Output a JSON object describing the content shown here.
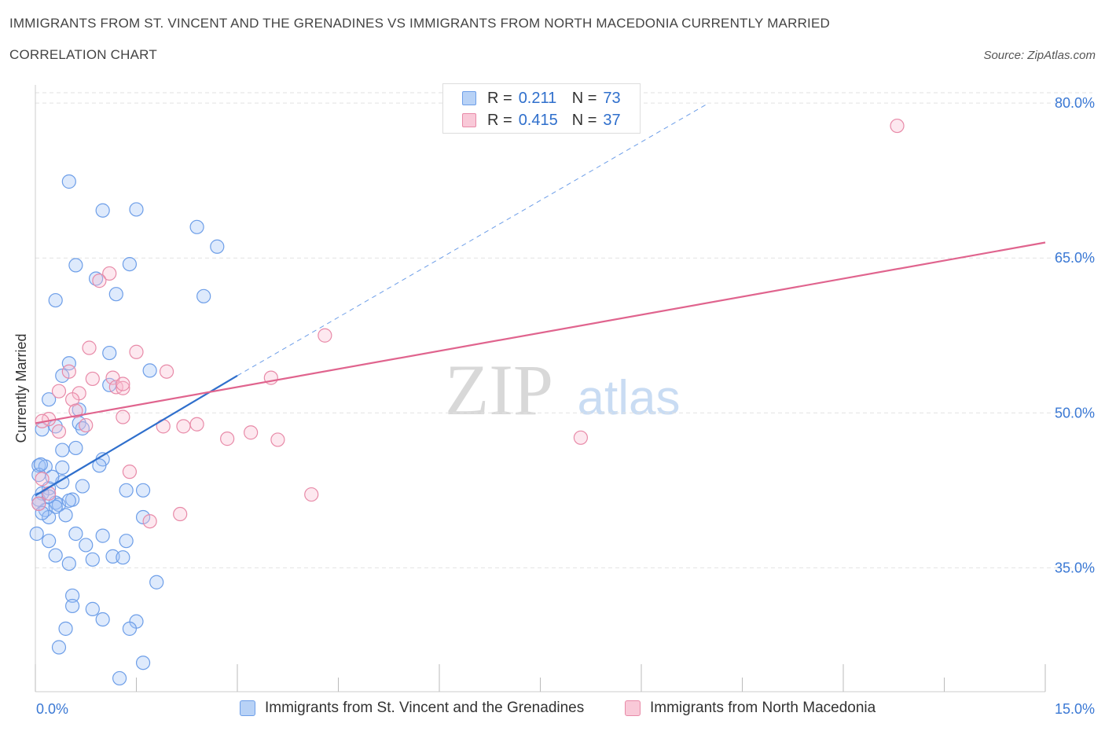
{
  "header": {
    "title_line1": "IMMIGRANTS FROM ST. VINCENT AND THE GRENADINES VS IMMIGRANTS FROM NORTH MACEDONIA CURRENTLY MARRIED",
    "title_line2": "CORRELATION CHART",
    "source": "Source: ZipAtlas.com"
  },
  "watermark": {
    "zip": "ZIP",
    "atlas": "atlas"
  },
  "legend_top": {
    "rows": [
      {
        "r_label": "R =",
        "r_value": "0.211",
        "n_label": "N =",
        "n_value": "73",
        "color": "#8ab4f0"
      },
      {
        "r_label": "R =",
        "r_value": "0.415",
        "n_label": "N =",
        "n_value": "37",
        "color": "#f4a8c0"
      }
    ]
  },
  "chart_data": {
    "type": "scatter",
    "ylabel": "Currently Married",
    "xlim": [
      0,
      15
    ],
    "ylim": [
      23,
      81
    ],
    "x_tick_labels": [
      "0.0%",
      "15.0%"
    ],
    "y_ticks": [
      35,
      50,
      65,
      80
    ],
    "y_tick_labels": [
      "35.0%",
      "50.0%",
      "65.0%",
      "80.0%"
    ],
    "grid": true,
    "series": [
      {
        "name": "Immigrants from St. Vincent and the Grenadines",
        "color": "#6d9ee8",
        "fill": "rgba(160,196,245,0.35)",
        "points": [
          [
            0.5,
            72.4
          ],
          [
            1.0,
            69.6
          ],
          [
            1.5,
            69.7
          ],
          [
            2.4,
            68.0
          ],
          [
            2.7,
            66.1
          ],
          [
            0.6,
            64.3
          ],
          [
            1.4,
            64.4
          ],
          [
            0.9,
            63.0
          ],
          [
            1.2,
            61.5
          ],
          [
            2.5,
            61.3
          ],
          [
            0.3,
            60.9
          ],
          [
            1.1,
            55.8
          ],
          [
            0.5,
            54.8
          ],
          [
            1.7,
            54.1
          ],
          [
            0.4,
            53.6
          ],
          [
            1.1,
            52.7
          ],
          [
            0.2,
            51.3
          ],
          [
            0.65,
            50.3
          ],
          [
            0.65,
            49.0
          ],
          [
            0.3,
            48.7
          ],
          [
            0.7,
            48.5
          ],
          [
            0.1,
            48.4
          ],
          [
            0.6,
            46.6
          ],
          [
            0.4,
            46.4
          ],
          [
            1.0,
            45.5
          ],
          [
            0.95,
            44.9
          ],
          [
            0.05,
            44.9
          ],
          [
            0.15,
            44.8
          ],
          [
            0.4,
            44.7
          ],
          [
            0.05,
            44.0
          ],
          [
            0.4,
            43.3
          ],
          [
            0.2,
            42.7
          ],
          [
            1.35,
            42.5
          ],
          [
            1.6,
            42.5
          ],
          [
            0.1,
            42.2
          ],
          [
            0.05,
            41.6
          ],
          [
            0.55,
            41.6
          ],
          [
            0.3,
            41.3
          ],
          [
            0.35,
            41.1
          ],
          [
            0.15,
            40.6
          ],
          [
            0.3,
            40.9
          ],
          [
            0.5,
            41.5
          ],
          [
            1.6,
            39.9
          ],
          [
            0.2,
            39.9
          ],
          [
            0.02,
            38.3
          ],
          [
            0.6,
            38.3
          ],
          [
            1.0,
            38.1
          ],
          [
            0.2,
            37.6
          ],
          [
            1.35,
            37.6
          ],
          [
            0.75,
            37.2
          ],
          [
            0.3,
            36.2
          ],
          [
            1.15,
            36.1
          ],
          [
            1.3,
            36.0
          ],
          [
            0.85,
            35.8
          ],
          [
            0.5,
            35.4
          ],
          [
            1.8,
            33.6
          ],
          [
            0.55,
            32.3
          ],
          [
            0.55,
            31.3
          ],
          [
            0.85,
            31.0
          ],
          [
            1.0,
            30.0
          ],
          [
            1.5,
            29.8
          ],
          [
            0.45,
            29.1
          ],
          [
            1.4,
            29.1
          ],
          [
            0.35,
            27.3
          ],
          [
            1.6,
            25.8
          ],
          [
            1.25,
            24.3
          ],
          [
            0.05,
            41.2
          ],
          [
            0.2,
            41.9
          ],
          [
            0.1,
            40.3
          ],
          [
            0.7,
            42.9
          ],
          [
            0.25,
            43.8
          ],
          [
            0.45,
            40.1
          ],
          [
            0.08,
            45.0
          ]
        ]
      },
      {
        "name": "Immigrants from North Macedonia",
        "color": "#e88aa8",
        "fill": "rgba(248,188,208,0.35)",
        "points": [
          [
            12.8,
            77.8
          ],
          [
            1.1,
            63.5
          ],
          [
            0.95,
            62.8
          ],
          [
            4.3,
            57.5
          ],
          [
            0.8,
            56.3
          ],
          [
            1.5,
            55.9
          ],
          [
            0.5,
            54.0
          ],
          [
            1.95,
            54.0
          ],
          [
            3.5,
            53.4
          ],
          [
            1.15,
            53.4
          ],
          [
            0.85,
            53.3
          ],
          [
            1.2,
            52.5
          ],
          [
            1.3,
            52.4
          ],
          [
            0.35,
            52.1
          ],
          [
            0.65,
            51.9
          ],
          [
            0.55,
            51.3
          ],
          [
            1.3,
            52.8
          ],
          [
            0.6,
            50.2
          ],
          [
            1.3,
            49.6
          ],
          [
            0.2,
            49.4
          ],
          [
            0.1,
            49.2
          ],
          [
            0.75,
            48.8
          ],
          [
            1.9,
            48.7
          ],
          [
            2.2,
            48.7
          ],
          [
            2.4,
            48.9
          ],
          [
            0.35,
            48.2
          ],
          [
            3.2,
            48.1
          ],
          [
            8.1,
            47.6
          ],
          [
            2.85,
            47.5
          ],
          [
            3.6,
            47.4
          ],
          [
            1.4,
            44.3
          ],
          [
            0.1,
            43.6
          ],
          [
            4.1,
            42.1
          ],
          [
            2.15,
            40.2
          ],
          [
            1.7,
            39.5
          ],
          [
            0.05,
            41.2
          ],
          [
            0.2,
            42.2
          ]
        ]
      }
    ],
    "trend_lines": [
      {
        "series": "Immigrants from St. Vincent and the Grenadines",
        "x": [
          0.0,
          3.0
        ],
        "y": [
          42.0,
          53.6
        ],
        "extended_dashed_to": [
          10.0,
          80.0
        ]
      },
      {
        "series": "Immigrants from North Macedonia",
        "x": [
          0.0,
          15.0
        ],
        "y": [
          49.0,
          66.5
        ]
      }
    ]
  },
  "bottom_legend": [
    {
      "label": "Immigrants from St. Vincent and the Grenadines",
      "color": "#8ab4f0"
    },
    {
      "label": "Immigrants from North Macedonia",
      "color": "#f4a8c0"
    }
  ]
}
